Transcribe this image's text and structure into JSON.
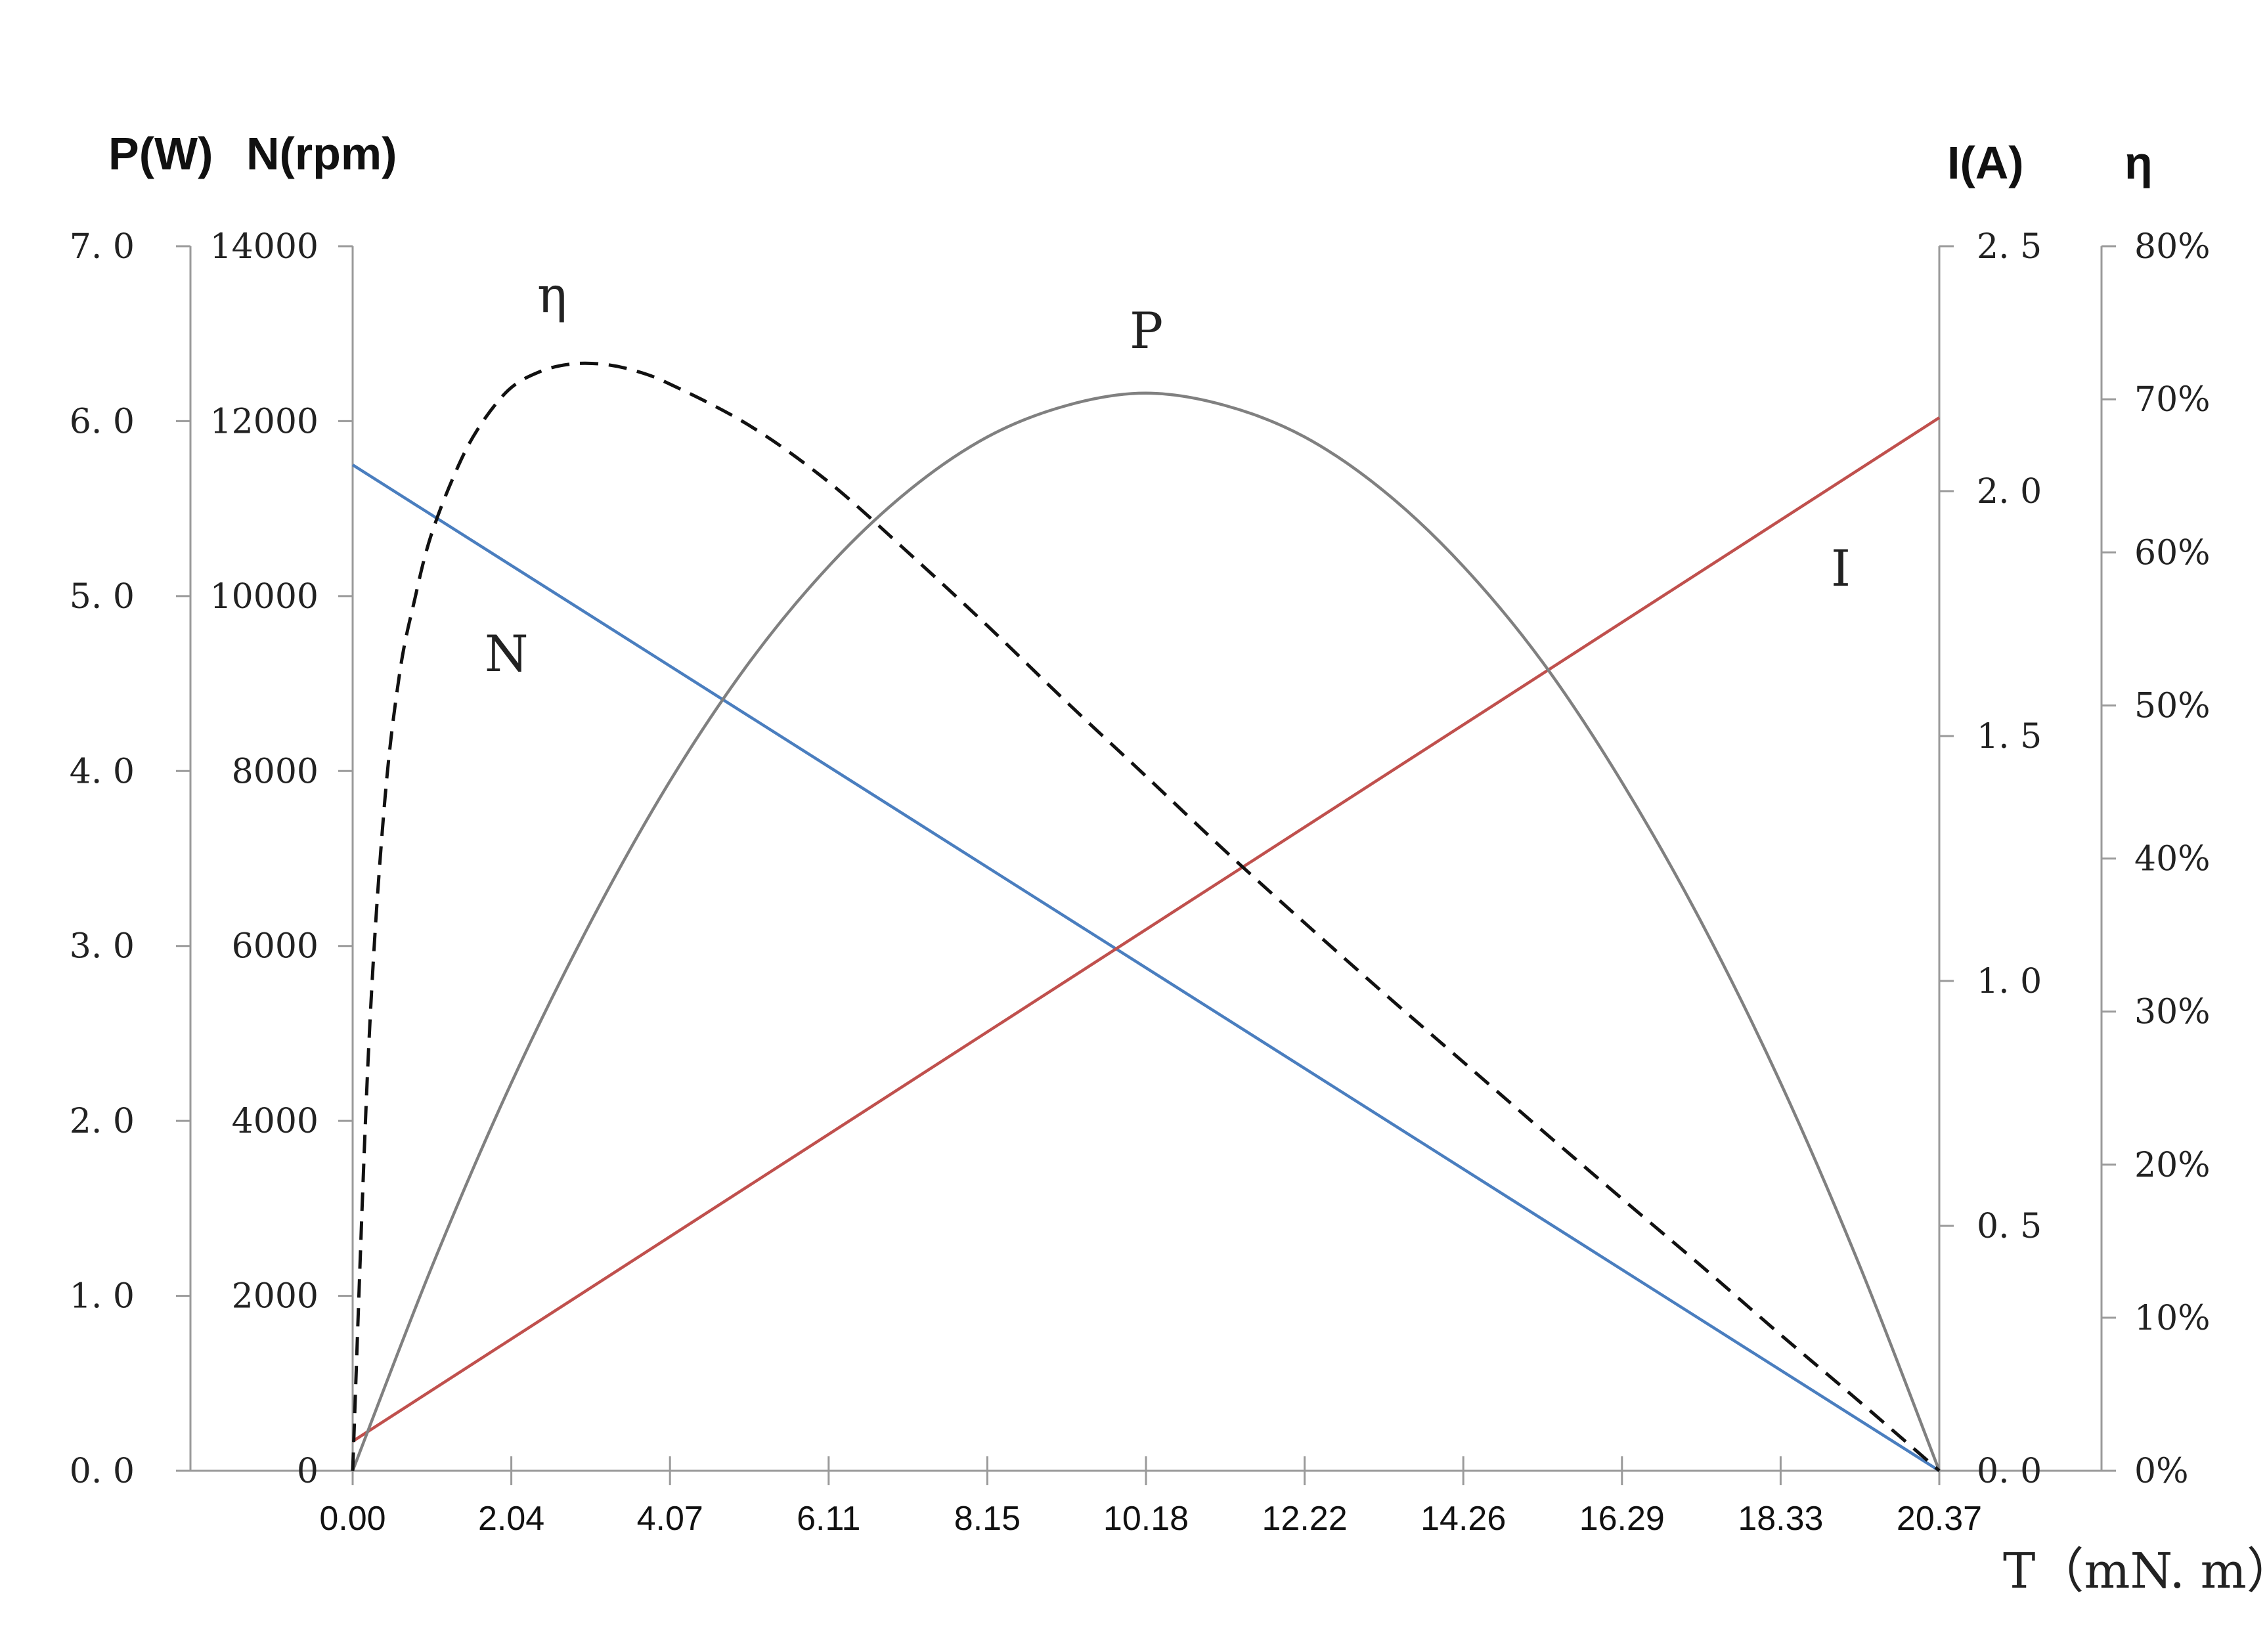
{
  "chart_data": {
    "type": "line",
    "axes": {
      "x": {
        "title": "T（mN. m）",
        "range": [
          0,
          20.37
        ],
        "ticks": [
          "0.00",
          "2.04",
          "4.07",
          "6.11",
          "8.15",
          "10.18",
          "12.22",
          "14.26",
          "16.29",
          "18.33",
          "20.37"
        ]
      },
      "power": {
        "title": "P(W)",
        "range": [
          0,
          7
        ],
        "ticks": [
          "0. 0",
          "1. 0",
          "2. 0",
          "3. 0",
          "4. 0",
          "5. 0",
          "6. 0",
          "7. 0"
        ]
      },
      "speed": {
        "title": "N(rpm)",
        "range": [
          0,
          14000
        ],
        "ticks": [
          "0",
          "2000",
          "4000",
          "6000",
          "8000",
          "10000",
          "12000",
          "14000"
        ]
      },
      "current": {
        "title": "I(A)",
        "range": [
          0,
          2.5
        ],
        "ticks": [
          "0. 0",
          "0. 5",
          "1. 0",
          "1. 5",
          "2. 0",
          "2. 5"
        ]
      },
      "efficiency": {
        "title": "η",
        "range": [
          0,
          80
        ],
        "ticks": [
          "0%",
          "10%",
          "20%",
          "30%",
          "40%",
          "50%",
          "60%",
          "70%",
          "80%"
        ]
      }
    },
    "series": [
      {
        "name": "N",
        "axis": "speed",
        "color": "#4a7ebf",
        "style": "solid",
        "x": [
          0,
          20.37
        ],
        "y": [
          11500,
          0
        ]
      },
      {
        "name": "I",
        "axis": "current",
        "color": "#c0504d",
        "style": "solid",
        "x": [
          0,
          20.37
        ],
        "y": [
          0.06,
          2.15
        ]
      },
      {
        "name": "P",
        "axis": "power",
        "color": "#808080",
        "style": "solid",
        "x": [
          0,
          1.02,
          2.04,
          3.06,
          4.07,
          5.09,
          6.11,
          7.13,
          8.15,
          9.17,
          10.18,
          11.2,
          12.22,
          13.24,
          14.26,
          15.28,
          16.29,
          17.31,
          18.33,
          19.35,
          20.37
        ],
        "y": [
          0,
          1.17,
          2.22,
          3.14,
          3.94,
          4.62,
          5.17,
          5.6,
          5.91,
          6.09,
          6.16,
          6.09,
          5.91,
          5.6,
          5.17,
          4.62,
          3.94,
          3.14,
          2.22,
          1.17,
          0
        ]
      },
      {
        "name": "η",
        "axis": "efficiency",
        "color": "#111111",
        "style": "dashed",
        "x": [
          0,
          0.2,
          0.4,
          0.6,
          0.8,
          1.0,
          1.3,
          1.6,
          2.0,
          2.4,
          2.8,
          3.2,
          3.6,
          4.07,
          5.09,
          6.11,
          7.13,
          8.15,
          9.17,
          10.18,
          11.2,
          12.22,
          13.24,
          14.26,
          15.28,
          16.29,
          17.31,
          18.33,
          19.35,
          20.37
        ],
        "y": [
          0,
          27,
          43,
          52,
          57,
          61,
          65,
          68,
          70.6,
          71.8,
          72.3,
          72.3,
          71.9,
          71.0,
          68.3,
          64.6,
          60.0,
          55.2,
          50.2,
          45.4,
          40.5,
          35.8,
          31.2,
          26.7,
          22.2,
          17.8,
          13.4,
          8.9,
          4.5,
          0
        ]
      }
    ],
    "curve_labels": [
      "N",
      "I",
      "P",
      "η"
    ],
    "grid": false,
    "legend": "none"
  }
}
